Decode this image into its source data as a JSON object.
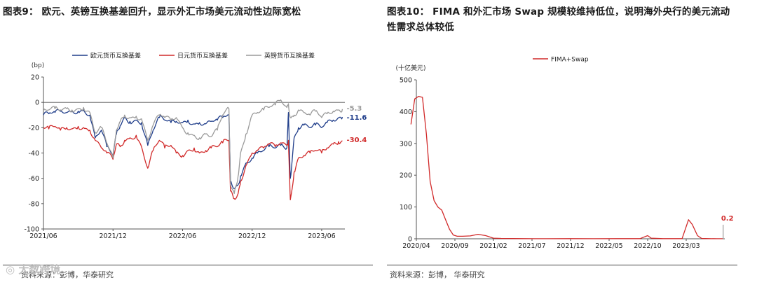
{
  "figures": [
    {
      "title": "图表9： 欧元、英镑互换基差回升，显示外汇市场美元流动性边际宽松",
      "source": "资料来源：彭博，华泰研究"
    },
    {
      "title": "图表10： FIMA 和外汇市场 Swap 规模较维持低位，说明海外央行的美元流动性需求总体较低",
      "source": "资料来源：彭博， 华泰研究"
    }
  ],
  "watermark": "大数跨境",
  "chart_data": [
    {
      "type": "line",
      "title": "",
      "ylabel": "(bp)",
      "xlabel": "",
      "ylim": [
        -100,
        20
      ],
      "yticks": [
        20,
        0,
        -20,
        -40,
        -60,
        -80,
        -100
      ],
      "xlim": [
        "2021-06",
        "2023-08"
      ],
      "xtick_labels": [
        "2021/06",
        "2021/12",
        "2022/06",
        "2022/12",
        "2023/06"
      ],
      "legend_position": "top",
      "grid": false,
      "series": [
        {
          "name": "欧元货币互换基差",
          "color": "#1f3d8a",
          "end_label": "-11.6",
          "points": [
            [
              "2021-06-01",
              -10
            ],
            [
              "2021-06-15",
              -9
            ],
            [
              "2021-07-01",
              -8
            ],
            [
              "2021-07-15",
              -7
            ],
            [
              "2021-08-01",
              -8
            ],
            [
              "2021-08-15",
              -7
            ],
            [
              "2021-09-01",
              -7
            ],
            [
              "2021-09-15",
              -6
            ],
            [
              "2021-10-01",
              -10
            ],
            [
              "2021-10-15",
              -28
            ],
            [
              "2021-11-01",
              -22
            ],
            [
              "2021-11-15",
              -35
            ],
            [
              "2021-12-01",
              -42
            ],
            [
              "2021-12-10",
              -25
            ],
            [
              "2021-12-20",
              -18
            ],
            [
              "2022-01-01",
              -12
            ],
            [
              "2022-01-15",
              -15
            ],
            [
              "2022-02-01",
              -14
            ],
            [
              "2022-02-15",
              -16
            ],
            [
              "2022-03-01",
              -34
            ],
            [
              "2022-03-15",
              -22
            ],
            [
              "2022-04-01",
              -12
            ],
            [
              "2022-04-15",
              -14
            ],
            [
              "2022-05-01",
              -16
            ],
            [
              "2022-05-15",
              -15
            ],
            [
              "2022-06-01",
              -16
            ],
            [
              "2022-06-15",
              -14
            ],
            [
              "2022-07-01",
              -17
            ],
            [
              "2022-07-15",
              -16
            ],
            [
              "2022-08-01",
              -17
            ],
            [
              "2022-08-15",
              -15
            ],
            [
              "2022-09-01",
              -14
            ],
            [
              "2022-09-15",
              -12
            ],
            [
              "2022-10-01",
              -10
            ],
            [
              "2022-10-05",
              -62
            ],
            [
              "2022-10-15",
              -68
            ],
            [
              "2022-10-25",
              -65
            ],
            [
              "2022-11-01",
              -58
            ],
            [
              "2022-11-15",
              -48
            ],
            [
              "2022-12-01",
              -44
            ],
            [
              "2022-12-15",
              -40
            ],
            [
              "2023-01-01",
              -38
            ],
            [
              "2023-01-15",
              -35
            ],
            [
              "2023-02-01",
              -36
            ],
            [
              "2023-02-15",
              -34
            ],
            [
              "2023-03-01",
              -36
            ],
            [
              "2023-03-05",
              -8
            ],
            [
              "2023-03-10",
              -60
            ],
            [
              "2023-03-20",
              -28
            ],
            [
              "2023-04-01",
              -20
            ],
            [
              "2023-04-15",
              -18
            ],
            [
              "2023-05-01",
              -20
            ],
            [
              "2023-05-15",
              -18
            ],
            [
              "2023-06-01",
              -20
            ],
            [
              "2023-06-15",
              -16
            ],
            [
              "2023-07-01",
              -14
            ],
            [
              "2023-07-15",
              -12
            ],
            [
              "2023-07-25",
              -11.6
            ]
          ]
        },
        {
          "name": "日元货币互换基差",
          "color": "#d12a2a",
          "end_label": "-30.4",
          "points": [
            [
              "2021-06-01",
              -20
            ],
            [
              "2021-06-15",
              -21
            ],
            [
              "2021-07-01",
              -19
            ],
            [
              "2021-07-15",
              -22
            ],
            [
              "2021-08-01",
              -20
            ],
            [
              "2021-08-15",
              -21
            ],
            [
              "2021-09-01",
              -19
            ],
            [
              "2021-09-15",
              -20
            ],
            [
              "2021-10-01",
              -22
            ],
            [
              "2021-10-15",
              -30
            ],
            [
              "2021-11-01",
              -36
            ],
            [
              "2021-11-15",
              -40
            ],
            [
              "2021-12-01",
              -45
            ],
            [
              "2021-12-10",
              -33
            ],
            [
              "2021-12-20",
              -35
            ],
            [
              "2022-01-01",
              -30
            ],
            [
              "2022-01-15",
              -28
            ],
            [
              "2022-02-01",
              -26
            ],
            [
              "2022-02-15",
              -35
            ],
            [
              "2022-03-01",
              -52
            ],
            [
              "2022-03-15",
              -38
            ],
            [
              "2022-04-01",
              -30
            ],
            [
              "2022-04-15",
              -36
            ],
            [
              "2022-05-01",
              -34
            ],
            [
              "2022-05-15",
              -40
            ],
            [
              "2022-06-01",
              -42
            ],
            [
              "2022-06-15",
              -38
            ],
            [
              "2022-07-01",
              -36
            ],
            [
              "2022-07-15",
              -40
            ],
            [
              "2022-08-01",
              -38
            ],
            [
              "2022-08-15",
              -36
            ],
            [
              "2022-09-01",
              -35
            ],
            [
              "2022-09-15",
              -32
            ],
            [
              "2022-10-01",
              -30
            ],
            [
              "2022-10-05",
              -70
            ],
            [
              "2022-10-15",
              -76
            ],
            [
              "2022-10-25",
              -72
            ],
            [
              "2022-11-01",
              -62
            ],
            [
              "2022-11-15",
              -50
            ],
            [
              "2022-12-01",
              -40
            ],
            [
              "2022-12-15",
              -38
            ],
            [
              "2023-01-01",
              -36
            ],
            [
              "2023-01-15",
              -33
            ],
            [
              "2023-02-01",
              -35
            ],
            [
              "2023-02-15",
              -32
            ],
            [
              "2023-03-01",
              -34
            ],
            [
              "2023-03-05",
              -30
            ],
            [
              "2023-03-10",
              -77
            ],
            [
              "2023-03-20",
              -55
            ],
            [
              "2023-04-01",
              -44
            ],
            [
              "2023-04-15",
              -42
            ],
            [
              "2023-05-01",
              -40
            ],
            [
              "2023-05-15",
              -38
            ],
            [
              "2023-06-01",
              -40
            ],
            [
              "2023-06-15",
              -36
            ],
            [
              "2023-07-01",
              -33
            ],
            [
              "2023-07-15",
              -31
            ],
            [
              "2023-07-25",
              -30.4
            ]
          ]
        },
        {
          "name": "英镑货币互换基差",
          "color": "#9a9a9a",
          "end_label": "-5.3",
          "points": [
            [
              "2021-06-01",
              -7
            ],
            [
              "2021-06-15",
              -6
            ],
            [
              "2021-07-01",
              -5
            ],
            [
              "2021-07-15",
              -6
            ],
            [
              "2021-08-01",
              -5
            ],
            [
              "2021-08-15",
              -6
            ],
            [
              "2021-09-01",
              -5
            ],
            [
              "2021-09-15",
              -4
            ],
            [
              "2021-10-01",
              -8
            ],
            [
              "2021-10-15",
              -24
            ],
            [
              "2021-11-01",
              -20
            ],
            [
              "2021-11-15",
              -32
            ],
            [
              "2021-12-01",
              -44
            ],
            [
              "2021-12-10",
              -22
            ],
            [
              "2021-12-20",
              -15
            ],
            [
              "2022-01-01",
              -10
            ],
            [
              "2022-01-15",
              -12
            ],
            [
              "2022-02-01",
              -11
            ],
            [
              "2022-02-15",
              -13
            ],
            [
              "2022-03-01",
              -30
            ],
            [
              "2022-03-15",
              -18
            ],
            [
              "2022-04-01",
              -10
            ],
            [
              "2022-04-15",
              -12
            ],
            [
              "2022-05-01",
              -14
            ],
            [
              "2022-05-15",
              -12
            ],
            [
              "2022-06-01",
              -20
            ],
            [
              "2022-06-15",
              -24
            ],
            [
              "2022-07-01",
              -26
            ],
            [
              "2022-07-15",
              -28
            ],
            [
              "2022-08-01",
              -25
            ],
            [
              "2022-08-15",
              -27
            ],
            [
              "2022-09-01",
              -22
            ],
            [
              "2022-09-15",
              -10
            ],
            [
              "2022-10-01",
              -5
            ],
            [
              "2022-10-05",
              -65
            ],
            [
              "2022-10-15",
              -72
            ],
            [
              "2022-10-25",
              -58
            ],
            [
              "2022-11-01",
              -40
            ],
            [
              "2022-11-15",
              -25
            ],
            [
              "2022-12-01",
              -10
            ],
            [
              "2022-12-15",
              -8
            ],
            [
              "2023-01-01",
              -6
            ],
            [
              "2023-01-15",
              -4
            ],
            [
              "2023-02-01",
              -2
            ],
            [
              "2023-02-15",
              2
            ],
            [
              "2023-03-01",
              -4
            ],
            [
              "2023-03-05",
              -1
            ],
            [
              "2023-03-10",
              -12
            ],
            [
              "2023-03-20",
              -10
            ],
            [
              "2023-04-01",
              -6
            ],
            [
              "2023-04-15",
              -8
            ],
            [
              "2023-05-01",
              -10
            ],
            [
              "2023-05-15",
              -7
            ],
            [
              "2023-06-01",
              -12
            ],
            [
              "2023-06-15",
              -9
            ],
            [
              "2023-07-01",
              -7
            ],
            [
              "2023-07-15",
              -6
            ],
            [
              "2023-07-25",
              -5.3
            ]
          ]
        }
      ]
    },
    {
      "type": "line",
      "title": "",
      "ylabel": "(十亿美元)",
      "xlabel": "",
      "ylim": [
        0,
        500
      ],
      "yticks": [
        500,
        400,
        300,
        200,
        100,
        0
      ],
      "xlim": [
        "2020-04",
        "2023-08"
      ],
      "xtick_labels": [
        "2020/04",
        "2020/09",
        "2021/02",
        "2021/07",
        "2021/12",
        "2022/05",
        "2022/10",
        "2023/03"
      ],
      "legend_position": "top",
      "grid": false,
      "series": [
        {
          "name": "FIMA+Swap",
          "color": "#d12a2a",
          "end_label": "0.2",
          "points": [
            [
              "2020-03-10",
              360
            ],
            [
              "2020-03-25",
              440
            ],
            [
              "2020-04-10",
              448
            ],
            [
              "2020-04-25",
              445
            ],
            [
              "2020-05-10",
              330
            ],
            [
              "2020-05-25",
              180
            ],
            [
              "2020-06-10",
              120
            ],
            [
              "2020-06-25",
              100
            ],
            [
              "2020-07-10",
              90
            ],
            [
              "2020-07-25",
              60
            ],
            [
              "2020-08-10",
              30
            ],
            [
              "2020-08-25",
              12
            ],
            [
              "2020-09-10",
              8
            ],
            [
              "2020-10-01",
              8
            ],
            [
              "2020-11-01",
              9
            ],
            [
              "2020-12-01",
              14
            ],
            [
              "2021-01-01",
              10
            ],
            [
              "2021-02-01",
              2
            ],
            [
              "2021-03-01",
              1
            ],
            [
              "2021-06-01",
              0.5
            ],
            [
              "2021-09-01",
              0.3
            ],
            [
              "2021-12-01",
              0.5
            ],
            [
              "2022-03-01",
              0.3
            ],
            [
              "2022-06-01",
              0.4
            ],
            [
              "2022-09-01",
              0.5
            ],
            [
              "2022-10-01",
              10
            ],
            [
              "2022-10-15",
              2
            ],
            [
              "2022-12-01",
              0.5
            ],
            [
              "2023-01-15",
              0.4
            ],
            [
              "2023-02-15",
              0.5
            ],
            [
              "2023-03-10",
              60
            ],
            [
              "2023-03-25",
              45
            ],
            [
              "2023-04-15",
              10
            ],
            [
              "2023-05-01",
              1
            ],
            [
              "2023-06-01",
              0.5
            ],
            [
              "2023-07-01",
              0.3
            ],
            [
              "2023-07-25",
              0.2
            ]
          ]
        }
      ]
    }
  ]
}
